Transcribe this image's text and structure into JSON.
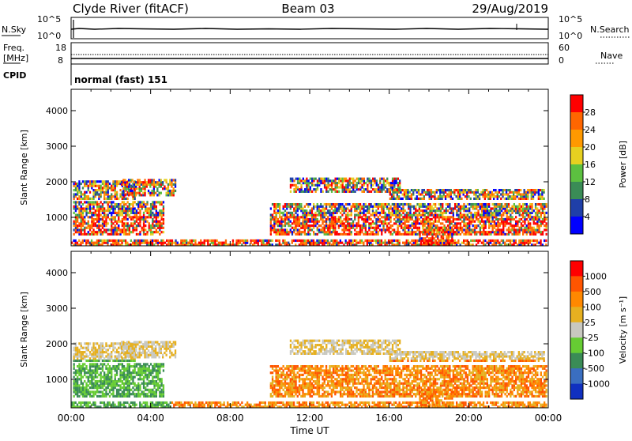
{
  "header": {
    "station": "Clyde River (fitACF)",
    "beam": "Beam 03",
    "date": "29/Aug/2019"
  },
  "top_panels": {
    "nsky_label": "N.Sky",
    "nsky_ticks": [
      "10^5",
      "10^0"
    ],
    "nsearch_label": "N.Search",
    "nsearch_ticks": [
      "10^5",
      "10^0"
    ],
    "freq_label_1": "Freq.",
    "freq_label_2": "[MHz]",
    "freq_ticks": [
      "18",
      "8"
    ],
    "nave_label": "Nave",
    "nave_ticks": [
      "60",
      "0"
    ],
    "cpid_label": "CPID",
    "cpid_value": "normal (fast) 151"
  },
  "chart_data": [
    {
      "type": "heatmap",
      "name": "power",
      "ylabel": "Slant Range [km]",
      "yticks": [
        1000,
        2000,
        3000,
        4000
      ],
      "ylim": [
        200,
        4600
      ],
      "xlim_hours": [
        0,
        24
      ],
      "xticks": [
        "00:00",
        "04:00",
        "08:00",
        "12:00",
        "16:00",
        "20:00",
        "00:00"
      ],
      "colorbar": {
        "label": "Power [dB]",
        "ticks": [
          "4",
          "8",
          "12",
          "16",
          "20",
          "24",
          "28"
        ],
        "colors": [
          "#0000ff",
          "#1f3fa8",
          "#3a8c56",
          "#5cc040",
          "#e6d020",
          "#ff9900",
          "#ff6600",
          "#ff0000"
        ]
      }
    },
    {
      "type": "heatmap",
      "name": "velocity",
      "ylabel": "Slant Range [km]",
      "yticks": [
        1000,
        2000,
        3000,
        4000
      ],
      "ylim": [
        200,
        4600
      ],
      "xlim_hours": [
        0,
        24
      ],
      "xticks": [
        "00:00",
        "04:00",
        "08:00",
        "12:00",
        "16:00",
        "20:00",
        "00:00"
      ],
      "xlabel": "Time UT",
      "colorbar": {
        "label": "Velocity [m s⁻¹]",
        "ticks": [
          "1000",
          "500",
          "100",
          "25",
          "-25",
          "-100",
          "-500",
          "-1000"
        ],
        "colors": [
          "#1030c0",
          "#3a6ec0",
          "#3a8c56",
          "#66cc33",
          "#c8c8c0",
          "#e6b020",
          "#ff8800",
          "#ff5500",
          "#ff0000"
        ]
      }
    }
  ]
}
